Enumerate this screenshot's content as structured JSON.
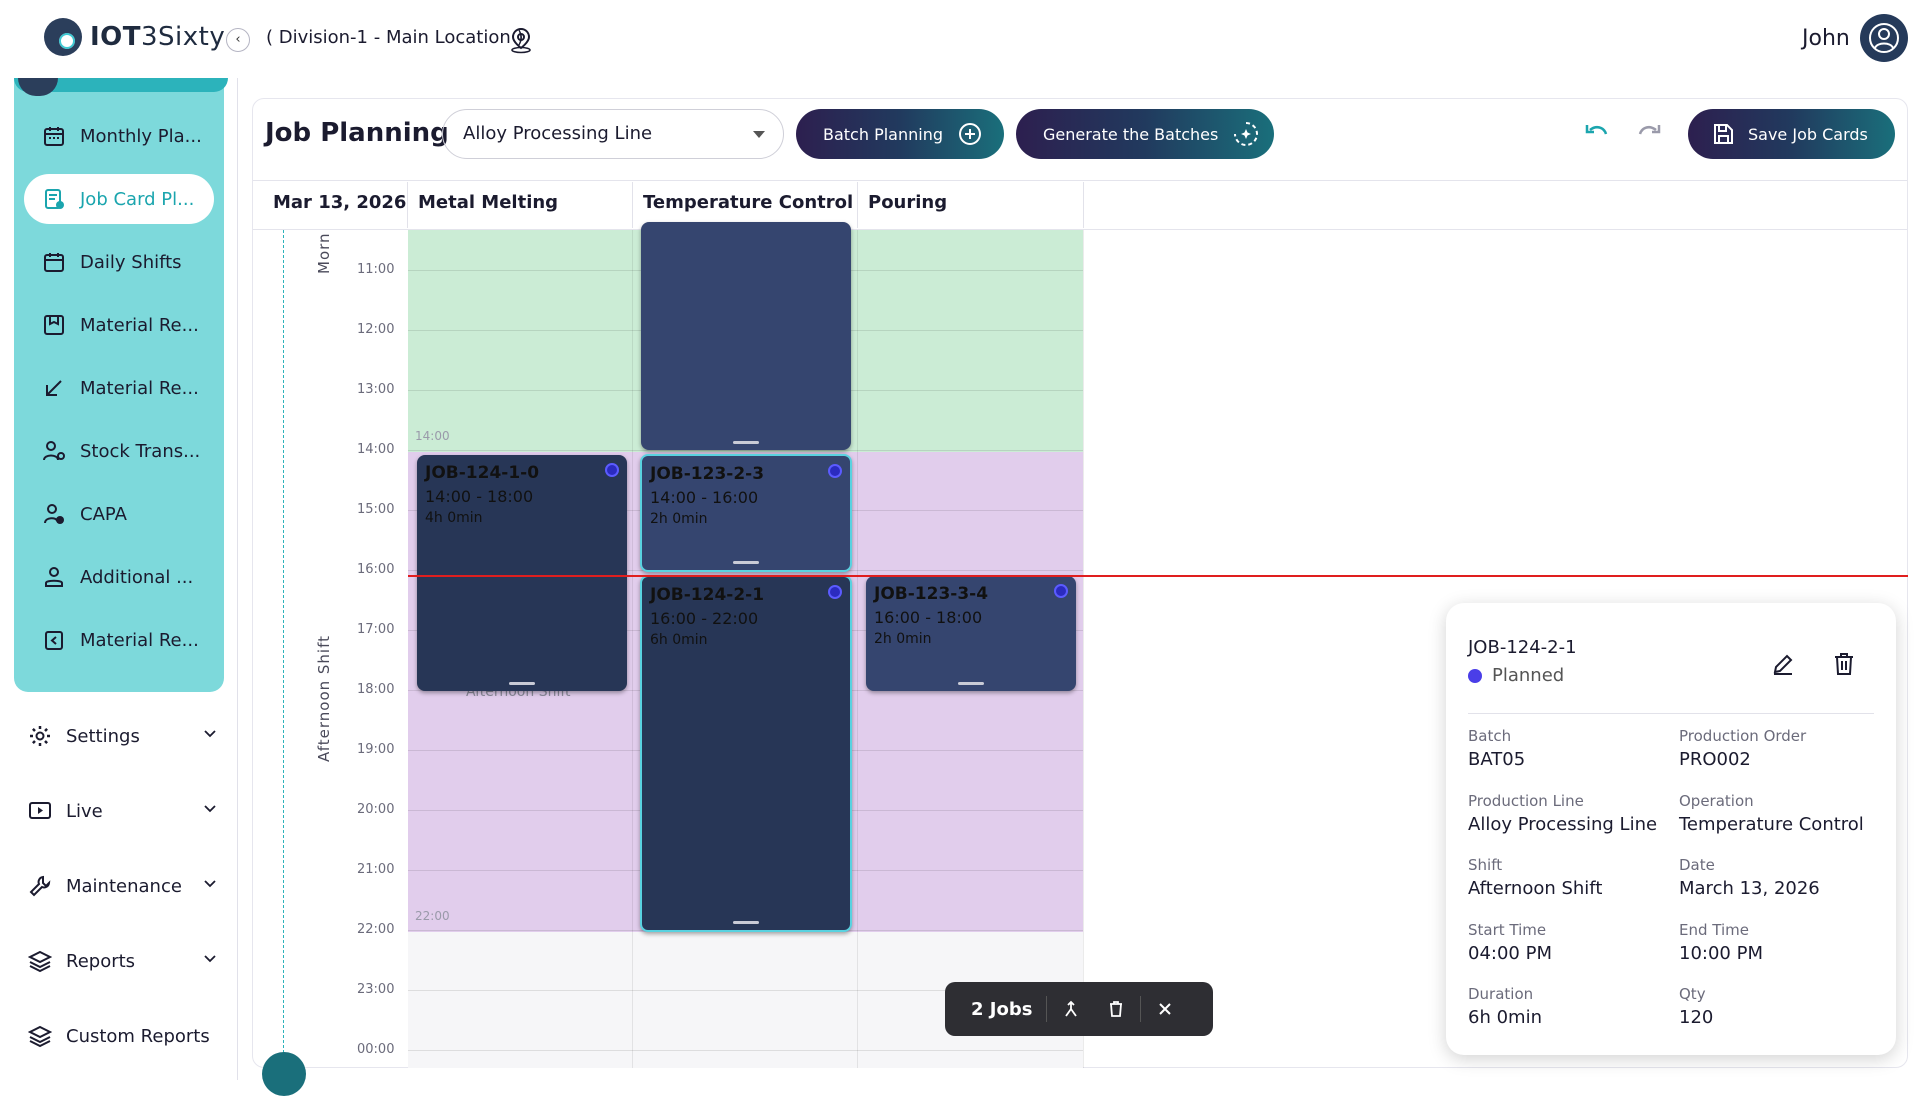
{
  "header": {
    "logo_bold": "IOT",
    "logo_light": "3Sixty",
    "location": "( Division-1 - Main Location )",
    "user_name": "John"
  },
  "sidebar": {
    "items": [
      {
        "label": "Monthly Pla...",
        "icon": "calendar-icon"
      },
      {
        "label": "Job Card Pl...",
        "icon": "job-card-icon",
        "active": true
      },
      {
        "label": "Daily Shifts",
        "icon": "calendar-icon"
      },
      {
        "label": "Material Re...",
        "icon": "material-box-icon"
      },
      {
        "label": "Material Re...",
        "icon": "arrow-down-left-icon"
      },
      {
        "label": "Stock Trans...",
        "icon": "stock-transfer-icon"
      },
      {
        "label": "CAPA",
        "icon": "capa-user-icon"
      },
      {
        "label": "Additional ...",
        "icon": "person-icon"
      },
      {
        "label": "Material Re...",
        "icon": "return-icon"
      }
    ],
    "groups": [
      {
        "label": "Settings",
        "icon": "gear-icon"
      },
      {
        "label": "Live",
        "icon": "play-screen-icon"
      },
      {
        "label": "Maintenance",
        "icon": "wrench-icon"
      },
      {
        "label": "Reports",
        "icon": "layers-icon"
      },
      {
        "label": "Custom Reports",
        "icon": "layers-icon"
      }
    ]
  },
  "toolbar": {
    "title": "Job Planning",
    "production_line": "Alloy Processing Line",
    "batch_planning": "Batch Planning",
    "generate_batches": "Generate the Batches",
    "save_job_cards": "Save Job Cards"
  },
  "schedule": {
    "date": "Mar 13, 2026",
    "columns": [
      "Metal Melting",
      "Temperature Control",
      "Pouring"
    ],
    "hours": [
      "11:00",
      "12:00",
      "13:00",
      "14:00",
      "15:00",
      "16:00",
      "17:00",
      "18:00",
      "19:00",
      "20:00",
      "21:00",
      "22:00",
      "23:00",
      "00:00"
    ],
    "shifts": [
      {
        "name": "Morn",
        "color": "#cbecd5",
        "end_label": "14:00"
      },
      {
        "name": "Afternoon Shift",
        "color": "#e1cdec",
        "end_label": "22:00"
      }
    ],
    "shift_ghost_label": "Afternoon Shift",
    "jobs": [
      {
        "id": "",
        "time": "",
        "duration": ""
      },
      {
        "id": "JOB-124-1-0",
        "time": "14:00 - 18:00",
        "duration": "4h 0min"
      },
      {
        "id": "JOB-123-2-3",
        "time": "14:00 - 16:00",
        "duration": "2h 0min"
      },
      {
        "id": "JOB-124-2-1",
        "time": "16:00 - 22:00",
        "duration": "6h 0min"
      },
      {
        "id": "JOB-123-3-4",
        "time": "16:00 - 18:00",
        "duration": "2h 0min"
      }
    ],
    "status_color": "#4a3ee8"
  },
  "action_bar": {
    "count_label": "2 Jobs"
  },
  "detail": {
    "job_id": "JOB-124-2-1",
    "status": "Planned",
    "fields": [
      {
        "label": "Batch",
        "value": "BAT05"
      },
      {
        "label": "Production Order",
        "value": "PRO002"
      },
      {
        "label": "Production Line",
        "value": "Alloy Processing Line"
      },
      {
        "label": "Operation",
        "value": "Temperature Control"
      },
      {
        "label": "Shift",
        "value": "Afternoon Shift"
      },
      {
        "label": "Date",
        "value": "March 13, 2026"
      },
      {
        "label": "Start Time",
        "value": "04:00 PM"
      },
      {
        "label": "End Time",
        "value": "10:00 PM"
      },
      {
        "label": "Duration",
        "value": "6h 0min"
      },
      {
        "label": "Qty",
        "value": "120"
      }
    ]
  },
  "colors": {
    "sidebar_bg": "#7dd9db",
    "accent": "#1ba5ae",
    "now_line": "#e01e1e"
  }
}
